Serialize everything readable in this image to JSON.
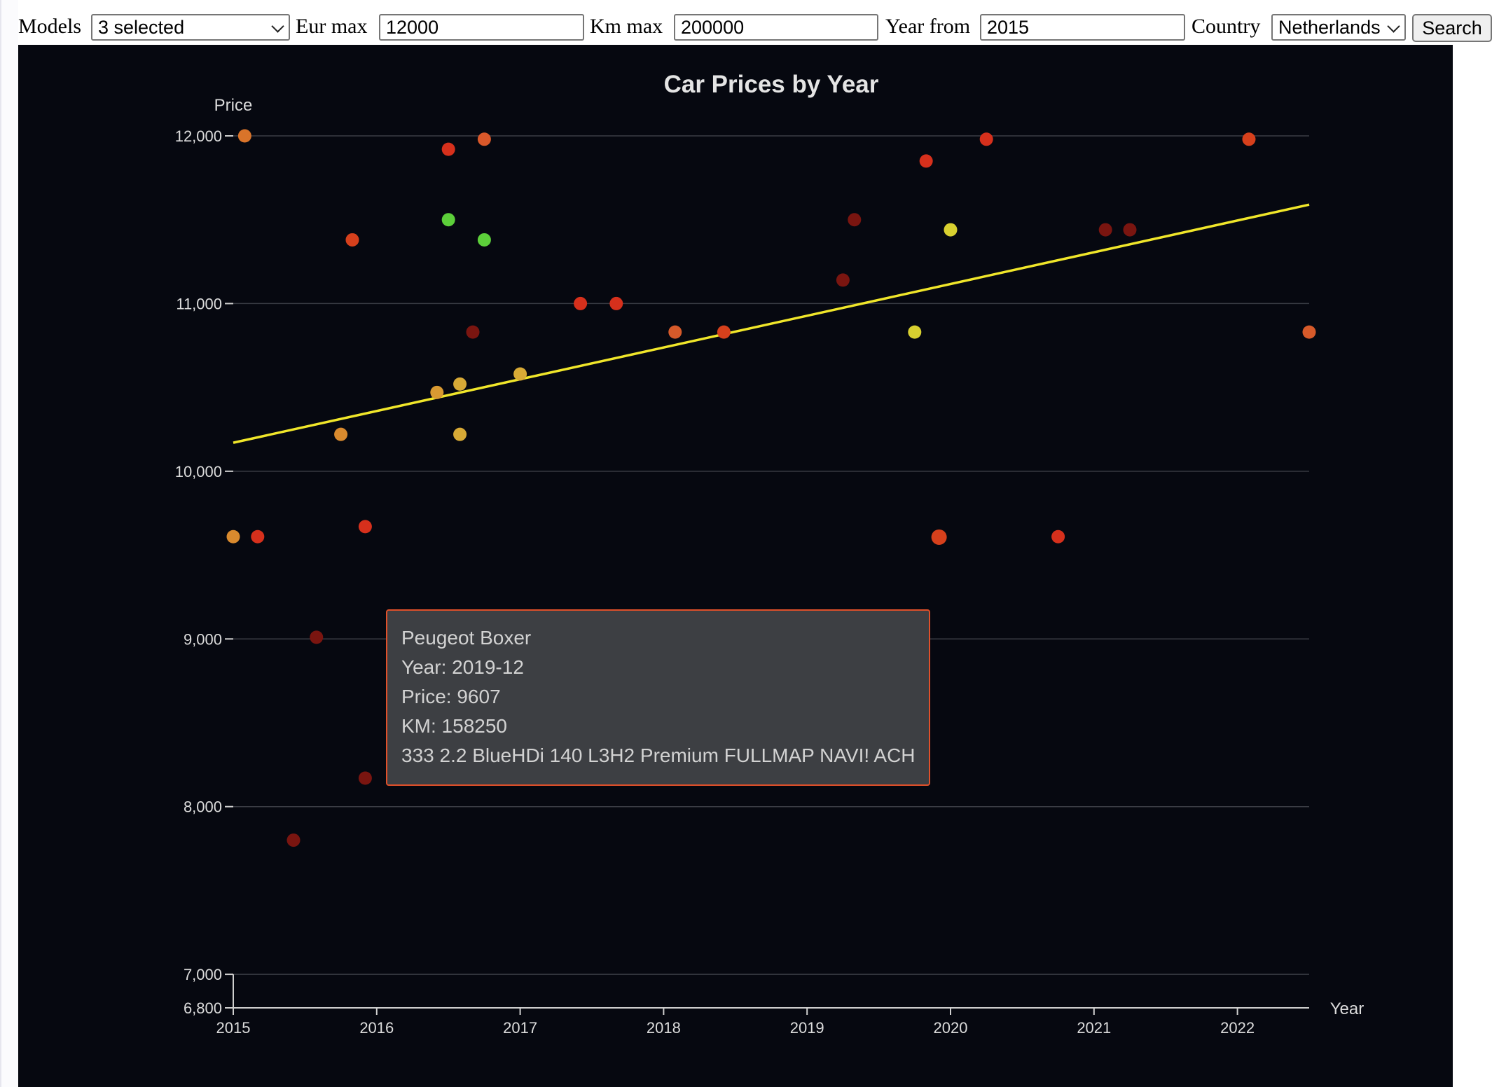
{
  "filters": {
    "models_label": "Models",
    "models_value": "3 selected",
    "eur_label": "Eur max",
    "eur_value": "12000",
    "km_label": "Km max",
    "km_value": "200000",
    "year_label": "Year from",
    "year_value": "2015",
    "country_label": "Country",
    "country_value": "Netherlands",
    "search_label": "Search"
  },
  "chart_data": {
    "type": "scatter",
    "title": "Car Prices by Year",
    "xlabel": "Year",
    "ylabel": "Price",
    "xlim": [
      2015,
      2022.5
    ],
    "ylim": [
      6800,
      12000
    ],
    "x_ticks": [
      2015,
      2016,
      2017,
      2018,
      2019,
      2020,
      2021,
      2022
    ],
    "y_ticks": [
      6800,
      7000,
      8000,
      9000,
      10000,
      11000,
      12000
    ],
    "x_tick_labels": [
      "2015",
      "2016",
      "2017",
      "2018",
      "2019",
      "2020",
      "2021",
      "2022"
    ],
    "y_tick_labels": [
      "6,800",
      "7,000",
      "8,000",
      "9,000",
      "10,000",
      "11,000",
      "12,000"
    ],
    "grid": "horizontal",
    "trendline": {
      "color": "#f0e62a",
      "points": [
        [
          2015,
          10170
        ],
        [
          2022.5,
          11590
        ]
      ]
    },
    "points": [
      {
        "x": 2015.08,
        "y": 12000,
        "color": "#d9742a"
      },
      {
        "x": 2016.5,
        "y": 11920,
        "color": "#d6301c"
      },
      {
        "x": 2016.75,
        "y": 11980,
        "color": "#d9582a"
      },
      {
        "x": 2016.5,
        "y": 11500,
        "color": "#5ccf3a"
      },
      {
        "x": 2016.75,
        "y": 11380,
        "color": "#5ccf3a"
      },
      {
        "x": 2015.83,
        "y": 11380,
        "color": "#d6401c"
      },
      {
        "x": 2017.42,
        "y": 11000,
        "color": "#d6301c"
      },
      {
        "x": 2017.67,
        "y": 11000,
        "color": "#d6301c"
      },
      {
        "x": 2016.67,
        "y": 10830,
        "color": "#7a1510"
      },
      {
        "x": 2018.08,
        "y": 10830,
        "color": "#d65a2a"
      },
      {
        "x": 2018.42,
        "y": 10830,
        "color": "#d6401c"
      },
      {
        "x": 2016.42,
        "y": 10470,
        "color": "#d99a32"
      },
      {
        "x": 2016.58,
        "y": 10520,
        "color": "#d8aa36"
      },
      {
        "x": 2017.0,
        "y": 10580,
        "color": "#d8aa36"
      },
      {
        "x": 2015.75,
        "y": 10220,
        "color": "#d98a2e"
      },
      {
        "x": 2016.58,
        "y": 10220,
        "color": "#d8aa36"
      },
      {
        "x": 2015.0,
        "y": 9610,
        "color": "#d98a2e"
      },
      {
        "x": 2015.17,
        "y": 9610,
        "color": "#d6301c"
      },
      {
        "x": 2015.92,
        "y": 9670,
        "color": "#d6301c"
      },
      {
        "x": 2015.58,
        "y": 9010,
        "color": "#7a1510"
      },
      {
        "x": 2015.92,
        "y": 8170,
        "color": "#7a1510"
      },
      {
        "x": 2015.42,
        "y": 7800,
        "color": "#7a1510"
      },
      {
        "x": 2019.25,
        "y": 11140,
        "color": "#7a1510"
      },
      {
        "x": 2019.33,
        "y": 11500,
        "color": "#7a1510"
      },
      {
        "x": 2019.83,
        "y": 11850,
        "color": "#d6301c"
      },
      {
        "x": 2020.25,
        "y": 11980,
        "color": "#d6301c"
      },
      {
        "x": 2020.0,
        "y": 11440,
        "color": "#d8d030"
      },
      {
        "x": 2019.75,
        "y": 10830,
        "color": "#d8d030"
      },
      {
        "x": 2019.92,
        "y": 9607,
        "color": "#d6401c",
        "hover": true
      },
      {
        "x": 2020.75,
        "y": 9610,
        "color": "#d6301c"
      },
      {
        "x": 2021.08,
        "y": 11440,
        "color": "#7a1510"
      },
      {
        "x": 2021.25,
        "y": 11440,
        "color": "#7a1510"
      },
      {
        "x": 2022.08,
        "y": 11980,
        "color": "#d6401c"
      },
      {
        "x": 2022.5,
        "y": 10830,
        "color": "#d65a2a"
      }
    ]
  },
  "tooltip": {
    "model": "Peugeot Boxer",
    "year": "Year: 2019-12",
    "price": "Price: 9607",
    "km": "KM: 158250",
    "description": "333 2.2 BlueHDi 140 L3H2 Premium FULLMAP NAVI! ACH"
  },
  "colors": {
    "chart_background": "#060810",
    "tooltip_border": "#e0502a",
    "trendline": "#f0e62a"
  }
}
